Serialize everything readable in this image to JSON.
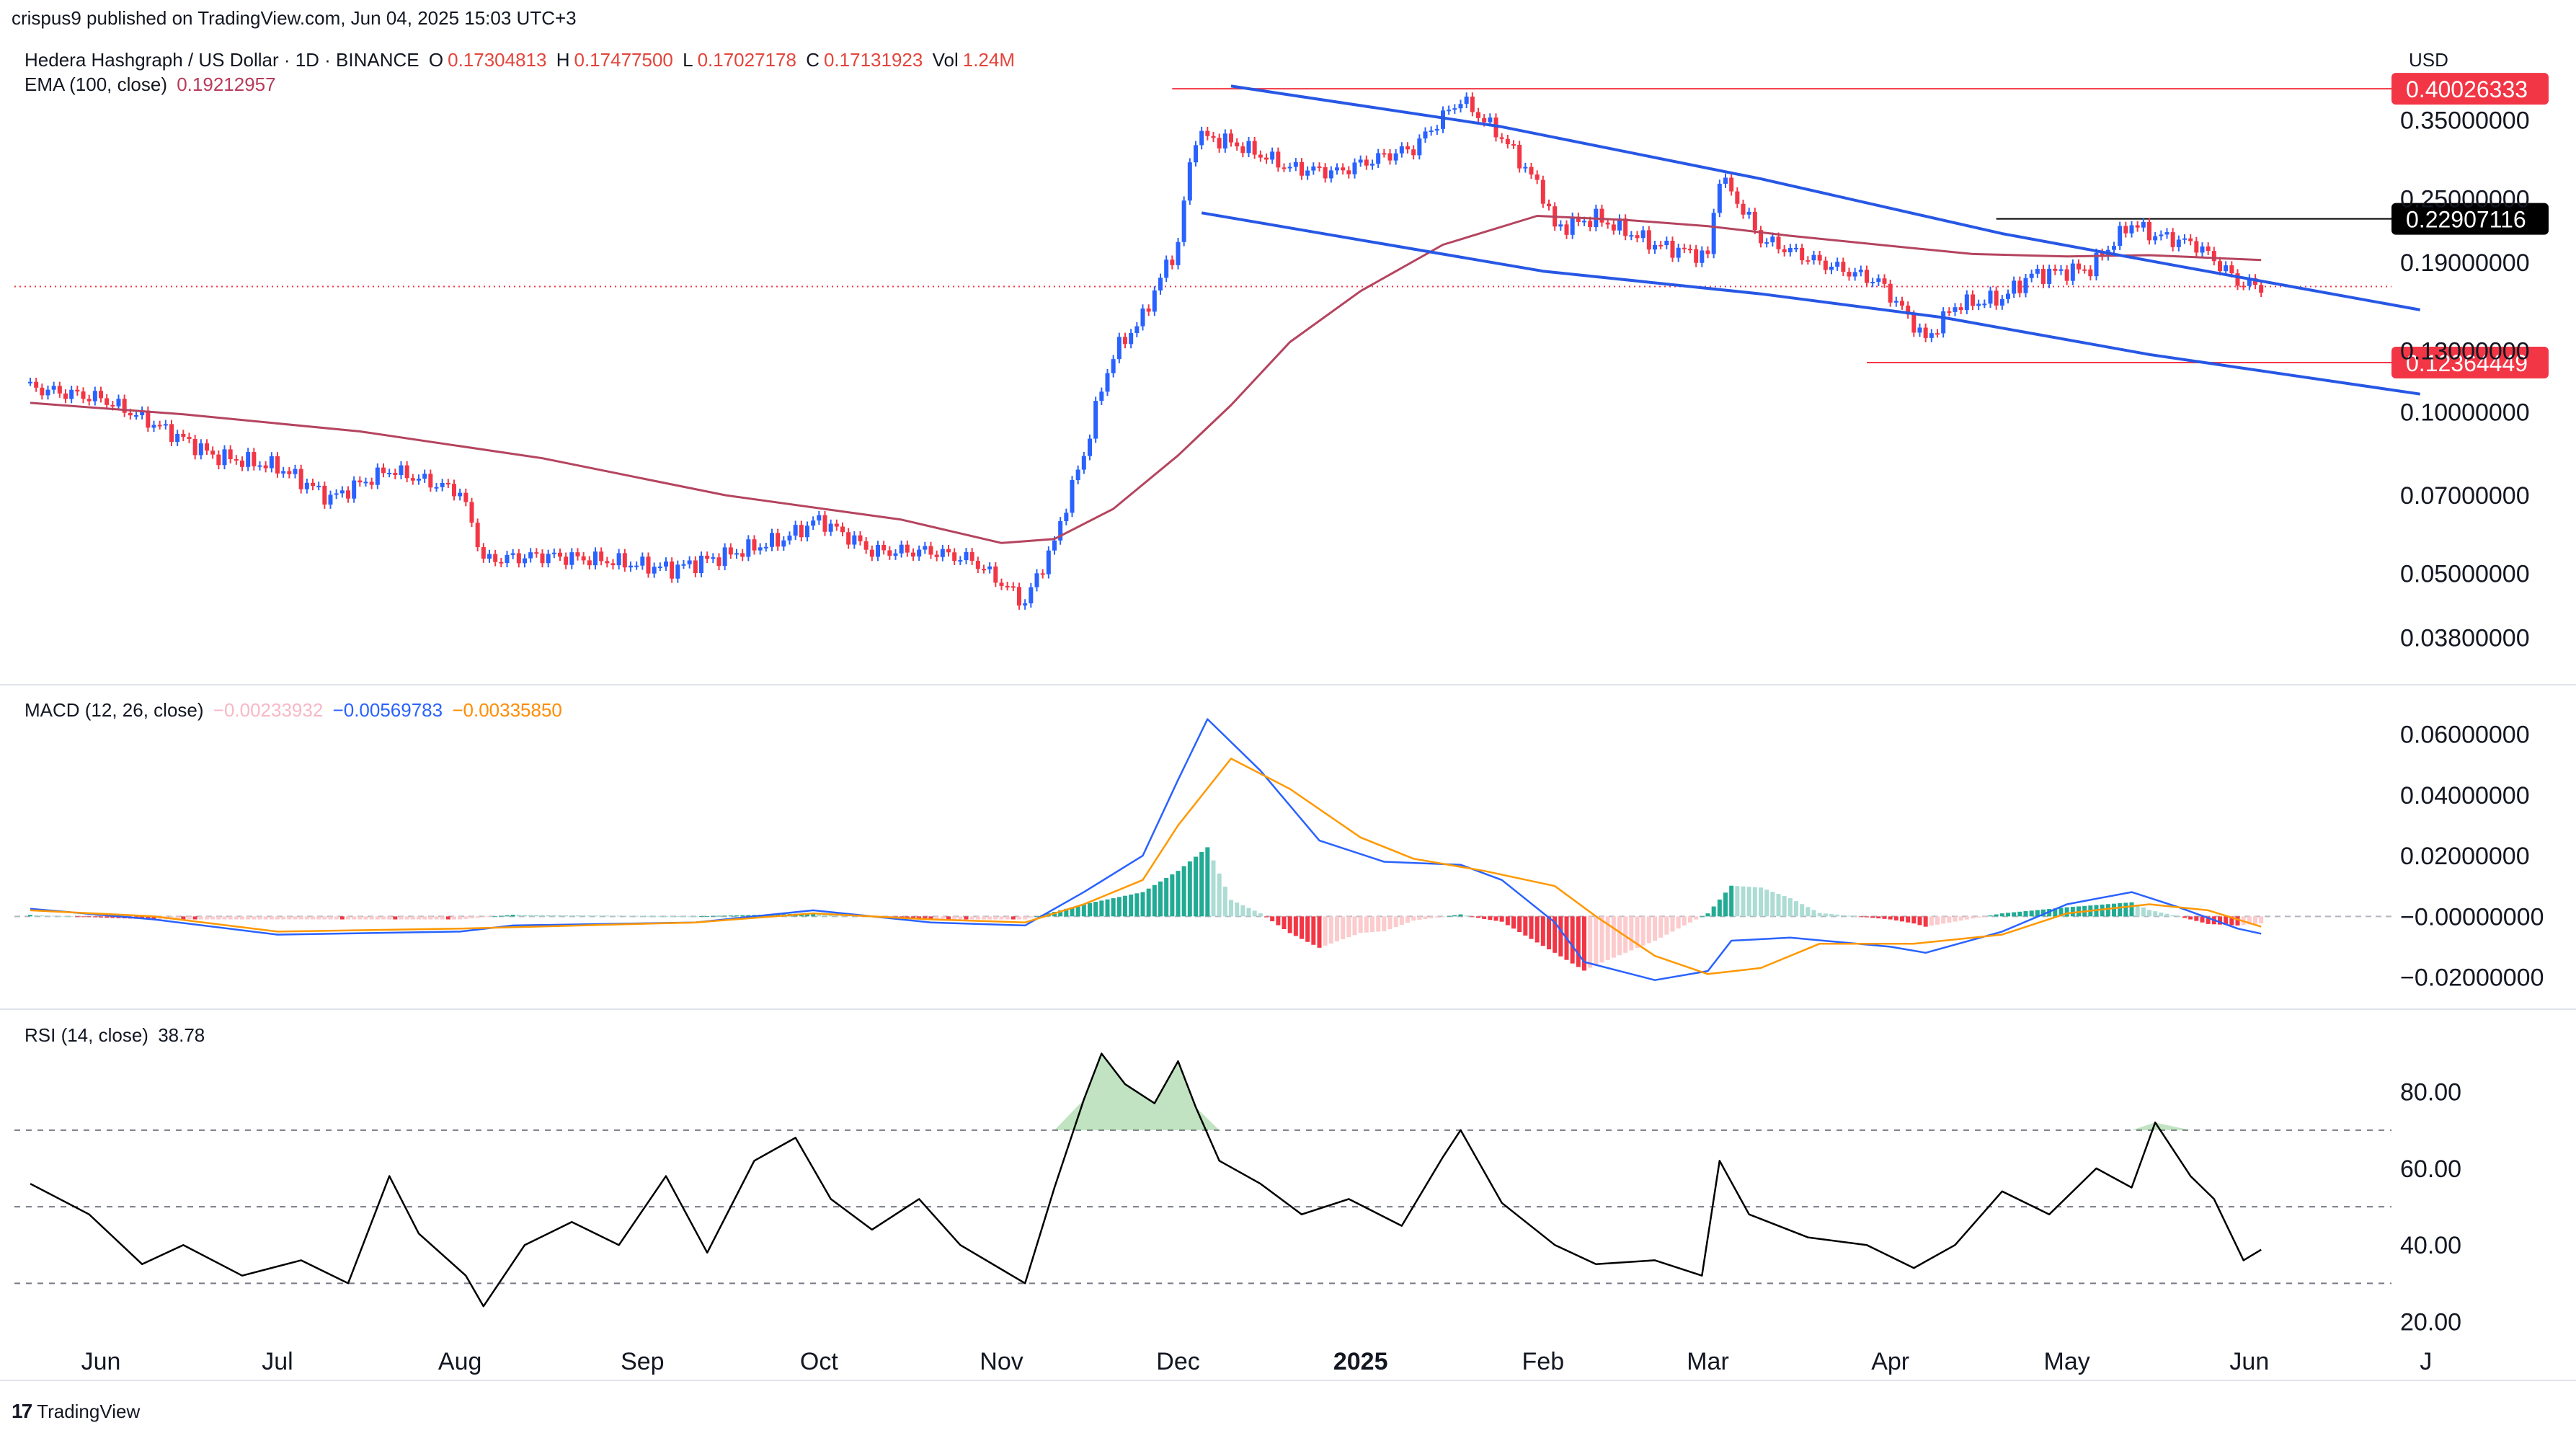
{
  "header": {
    "published": "crispus9 published on TradingView.com, Jun 04, 2025 15:03 UTC+3"
  },
  "footer": {
    "logo": "17",
    "brand": "TradingView"
  },
  "price_legend": {
    "title": "Hedera Hashgraph / US Dollar · 1D · BINANCE",
    "o_label": "O",
    "o_value": "0.17304813",
    "h_label": "H",
    "h_value": "0.17477500",
    "l_label": "L",
    "l_value": "0.17027178",
    "c_label": "C",
    "c_value": "0.17131923",
    "vol_label": "Vol",
    "vol_value": "1.24M",
    "ema_title": "EMA (100, close)",
    "ema_value": "0.19212957"
  },
  "macd_legend": {
    "title": "MACD (12, 26, close)",
    "hist": "−0.00233932",
    "macd": "−0.00569783",
    "signal": "−0.00335850"
  },
  "rsi_legend": {
    "title": "RSI (14, close)",
    "value": "38.78"
  },
  "currency": "USD",
  "price_labels": {
    "top": "0.40026333",
    "black": "0.22907116",
    "bottom": "0.12364449",
    "hidden_1": "0.25000000",
    "hidden_2": "0.13000000"
  },
  "colors": {
    "up": "#2962ff",
    "down": "#f23645",
    "ema": "#b5445f",
    "trend": "#2757e5",
    "macd": "#2962ff",
    "signal": "#ff9800",
    "rsi": "#000000"
  },
  "chart_data": [
    {
      "type": "line",
      "title": "Hedera Hashgraph / US Dollar · 1D · BINANCE",
      "y_scale": "log",
      "ylim": [
        0.033,
        0.43
      ],
      "y_ticks": [
        0.038,
        0.05,
        0.07,
        0.1,
        0.19,
        0.35
      ],
      "y_tick_labels": [
        "0.03800000",
        "0.05000000",
        "0.07000000",
        "0.10000000",
        "0.19000000",
        "0.35000000"
      ],
      "x_ticks": [
        "Jun",
        "Jul",
        "Aug",
        "Sep",
        "Oct",
        "Nov",
        "Dec",
        "2025",
        "Feb",
        "Mar",
        "Apr",
        "May",
        "Jun",
        "J"
      ],
      "series": [
        {
          "name": "Hedera Hashgraph / US Dollar",
          "x": [
            "2024-05-20",
            "2024-06-01",
            "2024-06-10",
            "2024-06-20",
            "2024-07-01",
            "2024-07-10",
            "2024-07-20",
            "2024-08-01",
            "2024-08-05",
            "2024-08-15",
            "2024-08-25",
            "2024-09-06",
            "2024-09-15",
            "2024-09-25",
            "2024-10-01",
            "2024-10-10",
            "2024-10-20",
            "2024-10-27",
            "2024-11-05",
            "2024-11-10",
            "2024-11-15",
            "2024-11-20",
            "2024-11-25",
            "2024-12-01",
            "2024-12-04",
            "2024-12-10",
            "2024-12-20",
            "2024-12-28",
            "2025-01-05",
            "2025-01-10",
            "2025-01-18",
            "2025-01-25",
            "2025-02-01",
            "2025-02-03",
            "2025-02-10",
            "2025-02-20",
            "2025-03-01",
            "2025-03-03",
            "2025-03-10",
            "2025-03-20",
            "2025-03-30",
            "2025-04-07",
            "2025-04-12",
            "2025-04-20",
            "2025-04-25",
            "2025-05-05",
            "2025-05-12",
            "2025-05-15",
            "2025-05-23",
            "2025-05-30",
            "2025-06-03"
          ],
          "values": [
            0.111,
            0.106,
            0.095,
            0.083,
            0.079,
            0.069,
            0.078,
            0.071,
            0.053,
            0.054,
            0.053,
            0.051,
            0.054,
            0.058,
            0.063,
            0.055,
            0.055,
            0.053,
            0.044,
            0.057,
            0.083,
            0.128,
            0.15,
            0.205,
            0.328,
            0.318,
            0.285,
            0.28,
            0.3,
            0.31,
            0.382,
            0.325,
            0.255,
            0.22,
            0.23,
            0.205,
            0.195,
            0.275,
            0.21,
            0.19,
            0.175,
            0.136,
            0.158,
            0.163,
            0.18,
            0.185,
            0.225,
            0.215,
            0.205,
            0.175,
            0.171
          ]
        },
        {
          "name": "EMA (100, close)",
          "x": [
            "2024-05-20",
            "2024-06-15",
            "2024-07-15",
            "2024-08-15",
            "2024-09-15",
            "2024-10-15",
            "2024-11-01",
            "2024-11-10",
            "2024-11-20",
            "2024-12-01",
            "2024-12-10",
            "2024-12-20",
            "2025-01-01",
            "2025-01-15",
            "2025-01-31",
            "2025-02-15",
            "2025-03-01",
            "2025-03-15",
            "2025-04-01",
            "2025-04-15",
            "2025-05-01",
            "2025-05-15",
            "2025-06-03"
          ],
          "values": [
            0.104,
            0.099,
            0.092,
            0.082,
            0.07,
            0.063,
            0.057,
            0.058,
            0.066,
            0.083,
            0.103,
            0.135,
            0.168,
            0.205,
            0.232,
            0.228,
            0.222,
            0.213,
            0.204,
            0.197,
            0.195,
            0.196,
            0.192
          ]
        },
        {
          "name": "upper trendline",
          "x": [
            "2024-12-10",
            "2025-01-25",
            "2025-03-10",
            "2025-04-20",
            "2025-05-20",
            "2025-06-30"
          ],
          "values": [
            0.405,
            0.34,
            0.272,
            0.215,
            0.187,
            0.155
          ]
        },
        {
          "name": "lower trendline",
          "x": [
            "2024-12-05",
            "2025-02-01",
            "2025-03-10",
            "2025-04-10",
            "2025-05-15",
            "2025-06-30"
          ],
          "values": [
            0.235,
            0.183,
            0.166,
            0.15,
            0.128,
            0.108
          ]
        }
      ],
      "horizontal_levels": [
        {
          "value": 0.40026333,
          "label": "0.40026333",
          "from": "2024-11-30",
          "color": "#f23645"
        },
        {
          "value": 0.22907116,
          "label": "0.22907116",
          "from": "2025-04-19",
          "color": "#000000"
        },
        {
          "value": 0.12364449,
          "label": "0.12364449",
          "from": "2025-03-28",
          "color": "#f23645"
        }
      ],
      "current_price": 0.17131923
    },
    {
      "type": "line",
      "title": "MACD (12, 26, close)",
      "ylim": [
        -0.027,
        0.068
      ],
      "y_ticks": [
        0.06,
        0.04,
        0.02,
        0.0,
        -0.02
      ],
      "y_tick_labels": [
        "0.06000000",
        "0.04000000",
        "0.02000000",
        "−0.00000000",
        "−0.02000000"
      ],
      "series": [
        {
          "name": "MACD",
          "x": [
            "2024-05-20",
            "2024-06-10",
            "2024-07-01",
            "2024-08-01",
            "2024-08-10",
            "2024-09-10",
            "2024-09-30",
            "2024-10-20",
            "2024-11-05",
            "2024-11-15",
            "2024-11-25",
            "2024-12-01",
            "2024-12-06",
            "2024-12-15",
            "2024-12-25",
            "2025-01-05",
            "2025-01-18",
            "2025-01-25",
            "2025-02-03",
            "2025-02-08",
            "2025-02-20",
            "2025-03-01",
            "2025-03-05",
            "2025-03-15",
            "2025-04-01",
            "2025-04-07",
            "2025-04-20",
            "2025-05-01",
            "2025-05-12",
            "2025-05-20",
            "2025-05-30",
            "2025-06-03"
          ],
          "values": [
            0.0025,
            -0.001,
            -0.006,
            -0.005,
            -0.003,
            -0.002,
            0.002,
            -0.002,
            -0.003,
            0.008,
            0.02,
            0.045,
            0.065,
            0.048,
            0.025,
            0.018,
            0.017,
            0.012,
            -0.002,
            -0.015,
            -0.021,
            -0.018,
            -0.008,
            -0.007,
            -0.01,
            -0.012,
            -0.005,
            0.004,
            0.008,
            0.003,
            -0.004,
            -0.0057
          ]
        },
        {
          "name": "Signal",
          "x": [
            "2024-05-20",
            "2024-06-10",
            "2024-07-01",
            "2024-08-01",
            "2024-09-10",
            "2024-09-30",
            "2024-10-20",
            "2024-11-05",
            "2024-11-15",
            "2024-11-25",
            "2024-12-01",
            "2024-12-10",
            "2024-12-20",
            "2025-01-01",
            "2025-01-10",
            "2025-01-22",
            "2025-02-03",
            "2025-02-10",
            "2025-02-20",
            "2025-03-01",
            "2025-03-10",
            "2025-03-20",
            "2025-04-05",
            "2025-04-20",
            "2025-05-01",
            "2025-05-15",
            "2025-05-25",
            "2025-06-03"
          ],
          "values": [
            0.002,
            0.0,
            -0.005,
            -0.004,
            -0.002,
            0.001,
            -0.001,
            -0.002,
            0.004,
            0.012,
            0.03,
            0.052,
            0.042,
            0.026,
            0.019,
            0.015,
            0.01,
            0.0,
            -0.013,
            -0.019,
            -0.017,
            -0.009,
            -0.009,
            -0.006,
            0.001,
            0.004,
            0.002,
            -0.0034
          ]
        }
      ]
    },
    {
      "type": "line",
      "title": "RSI (14, close)",
      "ylim": [
        15,
        95
      ],
      "y_ticks": [
        80,
        60,
        40,
        20
      ],
      "y_tick_labels": [
        "80.00",
        "60.00",
        "40.00",
        "20.00"
      ],
      "bands": [
        70,
        50,
        30
      ],
      "series": [
        {
          "name": "RSI",
          "x": [
            "2024-05-20",
            "2024-05-30",
            "2024-06-08",
            "2024-06-15",
            "2024-06-25",
            "2024-07-05",
            "2024-07-13",
            "2024-07-20",
            "2024-07-25",
            "2024-08-02",
            "2024-08-05",
            "2024-08-12",
            "2024-08-20",
            "2024-08-28",
            "2024-09-05",
            "2024-09-12",
            "2024-09-20",
            "2024-09-27",
            "2024-10-03",
            "2024-10-10",
            "2024-10-18",
            "2024-10-25",
            "2024-11-05",
            "2024-11-10",
            "2024-11-15",
            "2024-11-18",
            "2024-11-22",
            "2024-11-27",
            "2024-12-01",
            "2024-12-04",
            "2024-12-08",
            "2024-12-15",
            "2024-12-22",
            "2024-12-30",
            "2025-01-08",
            "2025-01-15",
            "2025-01-18",
            "2025-01-25",
            "2025-02-03",
            "2025-02-10",
            "2025-02-20",
            "2025-02-28",
            "2025-03-03",
            "2025-03-08",
            "2025-03-18",
            "2025-03-28",
            "2025-04-05",
            "2025-04-12",
            "2025-04-20",
            "2025-04-28",
            "2025-05-06",
            "2025-05-12",
            "2025-05-16",
            "2025-05-22",
            "2025-05-26",
            "2025-05-31",
            "2025-06-03"
          ],
          "values": [
            56,
            48,
            35,
            40,
            32,
            36,
            30,
            58,
            43,
            32,
            24,
            40,
            46,
            40,
            58,
            38,
            62,
            68,
            52,
            44,
            52,
            40,
            30,
            55,
            78,
            90,
            82,
            77,
            88,
            76,
            62,
            56,
            48,
            52,
            45,
            63,
            70,
            51,
            40,
            35,
            36,
            32,
            62,
            48,
            42,
            40,
            34,
            40,
            54,
            48,
            60,
            55,
            72,
            58,
            52,
            36,
            38.78
          ]
        }
      ]
    }
  ]
}
